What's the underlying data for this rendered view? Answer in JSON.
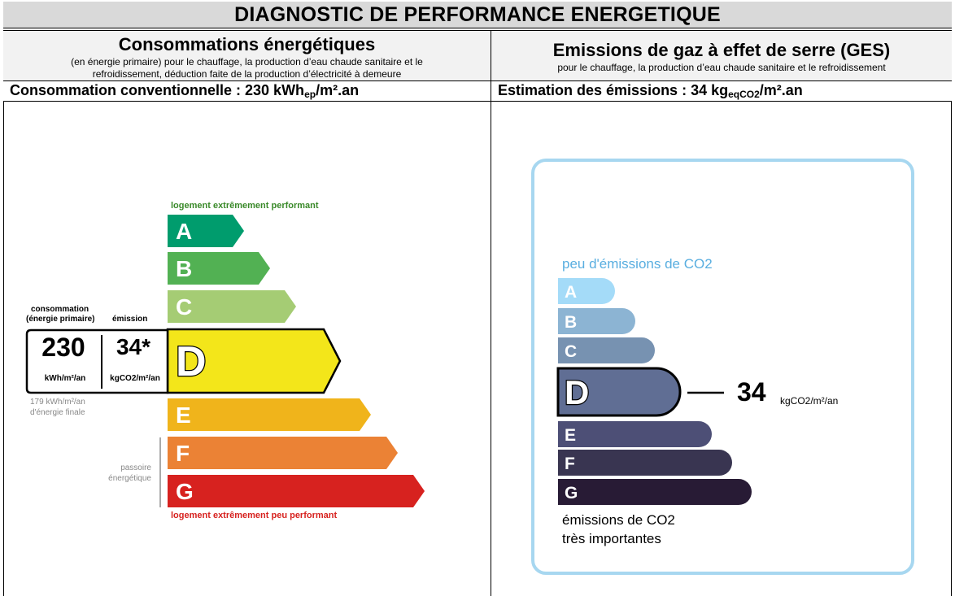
{
  "title": "DIAGNOSTIC DE PERFORMANCE ENERGETIQUE",
  "energy": {
    "heading": "Consommations énergétiques",
    "subheading_line1": "(en énergie primaire) pour le chauffage, la production d’eau chaude sanitaire et le",
    "subheading_line2": "refroidissement, déduction faite de la production d’électricité à demeure",
    "estimate_label": "Consommation conventionnelle : 230 kWh",
    "estimate_sub": "ep",
    "estimate_unit": "/m².an",
    "top_label": "logement extrêmement performant",
    "bottom_label": "logement extrêmement peu performant",
    "consumption_label_line1": "consommation",
    "consumption_label_line2": "(énergie primaire)",
    "emission_label": "émission",
    "consumption_value": "230",
    "emission_value": "34*",
    "consumption_unit": "kWh/m²/an",
    "emission_unit": "kgCO2/m²/an",
    "final_energy_line1": "179 kWh/m²/an",
    "final_energy_line2": "d'énergie finale",
    "passoire_line1": "passoire",
    "passoire_line2": "énergétique",
    "current_class": "D",
    "classes": [
      {
        "letter": "A",
        "color": "#009c6d"
      },
      {
        "letter": "B",
        "color": "#52b153"
      },
      {
        "letter": "C",
        "color": "#a5cc74"
      },
      {
        "letter": "D",
        "color": "#f3e61a"
      },
      {
        "letter": "E",
        "color": "#f0b41b"
      },
      {
        "letter": "F",
        "color": "#eb8235"
      },
      {
        "letter": "G",
        "color": "#d7221f"
      }
    ]
  },
  "ges": {
    "heading": "Emissions de gaz à effet de serre (GES)",
    "subheading": "pour le chauffage, la production d’eau chaude sanitaire et le refroidissement",
    "estimate_label": "Estimation des émissions : 34 kg",
    "estimate_sub": "eqCO2",
    "estimate_unit": "/m².an",
    "top_label": "peu d'émissions de CO2",
    "bottom_label_line1": "émissions de CO2",
    "bottom_label_line2": "très importantes",
    "value": "34",
    "unit": "kgCO2/m²/an",
    "current_class": "D",
    "classes": [
      {
        "letter": "A",
        "color": "#a4dbf8"
      },
      {
        "letter": "B",
        "color": "#8cb4d3"
      },
      {
        "letter": "C",
        "color": "#7792b1"
      },
      {
        "letter": "D",
        "color": "#606e94"
      },
      {
        "letter": "E",
        "color": "#4d4f76"
      },
      {
        "letter": "F",
        "color": "#393551"
      },
      {
        "letter": "G",
        "color": "#281b35"
      }
    ],
    "frame_color": "#a7d7f0"
  }
}
